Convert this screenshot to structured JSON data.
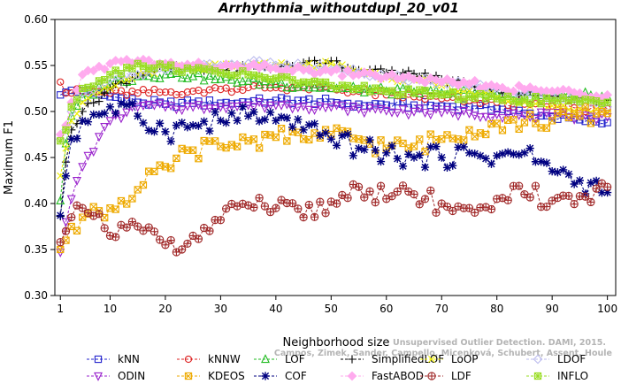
{
  "chart_data": {
    "type": "line",
    "title": "Arrhythmia_withoutdupl_20_v01",
    "xlabel": "Neighborhood size",
    "ylabel": "Maximum F1",
    "xlim": [
      1,
      100
    ],
    "ylim": [
      0.3,
      0.6
    ],
    "x_ticks": [
      1,
      10,
      20,
      30,
      40,
      50,
      60,
      70,
      80,
      90,
      100
    ],
    "y_ticks": [
      "0.30",
      "0.35",
      "0.40",
      "0.45",
      "0.50",
      "0.55",
      "0.60"
    ],
    "grid": false,
    "legend_position": "bottom",
    "credit": "Campos, Zimek, Sander, Campello, Micenková, Schubert, Assent, Houle",
    "credit_partial": "Unsupervised Outlier Detection. DAMI, 2015.",
    "x_knots": [
      1,
      2,
      3,
      5,
      10,
      15,
      20,
      25,
      30,
      35,
      40,
      45,
      50,
      55,
      60,
      65,
      70,
      75,
      80,
      85,
      90,
      95,
      100
    ],
    "series": [
      {
        "name": "kNN",
        "color": "#2222cc",
        "marker": "square",
        "values": [
          0.518,
          0.521,
          0.523,
          0.523,
          0.516,
          0.51,
          0.508,
          0.509,
          0.509,
          0.51,
          0.512,
          0.512,
          0.51,
          0.508,
          0.507,
          0.507,
          0.506,
          0.505,
          0.503,
          0.498,
          0.494,
          0.491,
          0.488
        ]
      },
      {
        "name": "kNNW",
        "color": "#dd2222",
        "marker": "circle",
        "values": [
          0.532,
          0.52,
          0.52,
          0.522,
          0.52,
          0.52,
          0.521,
          0.522,
          0.524,
          0.526,
          0.526,
          0.526,
          0.525,
          0.522,
          0.518,
          0.516,
          0.514,
          0.512,
          0.51,
          0.508,
          0.506,
          0.504,
          0.503
        ]
      },
      {
        "name": "LOF",
        "color": "#22bb22",
        "marker": "triangle",
        "values": [
          0.403,
          0.465,
          0.495,
          0.515,
          0.53,
          0.538,
          0.54,
          0.538,
          0.535,
          0.533,
          0.53,
          0.528,
          0.525,
          0.524,
          0.522,
          0.521,
          0.52,
          0.52,
          0.519,
          0.518,
          0.518,
          0.517,
          0.516
        ]
      },
      {
        "name": "SimplifiedLOF",
        "color": "#000000",
        "marker": "plus",
        "values": [
          0.386,
          0.445,
          0.48,
          0.5,
          0.525,
          0.54,
          0.548,
          0.545,
          0.545,
          0.548,
          0.548,
          0.553,
          0.555,
          0.545,
          0.542,
          0.541,
          0.535,
          0.53,
          0.525,
          0.52,
          0.517,
          0.515,
          0.512
        ]
      },
      {
        "name": "LoOP",
        "color": "#eeee00",
        "marker": "x",
        "values": [
          0.43,
          0.46,
          0.49,
          0.51,
          0.525,
          0.54,
          0.548,
          0.547,
          0.548,
          0.549,
          0.55,
          0.55,
          0.552,
          0.544,
          0.538,
          0.534,
          0.528,
          0.522,
          0.515,
          0.51,
          0.506,
          0.503,
          0.5
        ]
      },
      {
        "name": "LDOF",
        "color": "#bbbbee",
        "marker": "diamond",
        "values": [
          0.47,
          0.48,
          0.5,
          0.52,
          0.535,
          0.54,
          0.545,
          0.548,
          0.55,
          0.552,
          0.55,
          0.548,
          0.545,
          0.542,
          0.538,
          0.535,
          0.532,
          0.528,
          0.525,
          0.52,
          0.515,
          0.51,
          0.505
        ]
      },
      {
        "name": "ODIN",
        "color": "#9922cc",
        "marker": "triangle-down",
        "values": [
          0.347,
          0.38,
          0.405,
          0.44,
          0.49,
          0.505,
          0.505,
          0.505,
          0.505,
          0.507,
          0.507,
          0.506,
          0.505,
          0.503,
          0.501,
          0.5,
          0.499,
          0.498,
          0.497,
          0.496,
          0.495,
          0.495,
          0.494
        ]
      },
      {
        "name": "KDEOS",
        "color": "#eeaa00",
        "marker": "square-x",
        "values": [
          0.35,
          0.36,
          0.375,
          0.385,
          0.395,
          0.415,
          0.44,
          0.458,
          0.462,
          0.468,
          0.472,
          0.47,
          0.475,
          0.47,
          0.46,
          0.462,
          0.47,
          0.48,
          0.487,
          0.488,
          0.49,
          0.495,
          0.498
        ]
      },
      {
        "name": "COF",
        "color": "#000080",
        "marker": "star",
        "values": [
          0.387,
          0.43,
          0.47,
          0.49,
          0.505,
          0.495,
          0.478,
          0.485,
          0.49,
          0.495,
          0.49,
          0.48,
          0.47,
          0.46,
          0.455,
          0.45,
          0.45,
          0.455,
          0.452,
          0.455,
          0.435,
          0.425,
          0.412
        ]
      },
      {
        "name": "FastABOD",
        "color": "#ffaaee",
        "marker": "diamond-fill",
        "values": [
          0.475,
          0.485,
          0.51,
          0.54,
          0.552,
          0.555,
          0.552,
          0.55,
          0.548,
          0.548,
          0.547,
          0.545,
          0.543,
          0.54,
          0.538,
          0.535,
          0.532,
          0.53,
          0.527,
          0.524,
          0.522,
          0.52,
          0.518
        ]
      },
      {
        "name": "LDF",
        "color": "#a02828",
        "marker": "circle-plus",
        "values": [
          0.358,
          0.37,
          0.385,
          0.395,
          0.365,
          0.375,
          0.355,
          0.365,
          0.382,
          0.398,
          0.395,
          0.385,
          0.402,
          0.418,
          0.405,
          0.41,
          0.4,
          0.395,
          0.405,
          0.41,
          0.403,
          0.408,
          0.418
        ]
      },
      {
        "name": "INFLO",
        "color": "#99dd22",
        "marker": "square-star",
        "values": [
          0.468,
          0.48,
          0.505,
          0.525,
          0.54,
          0.552,
          0.548,
          0.545,
          0.542,
          0.54,
          0.536,
          0.532,
          0.528,
          0.525,
          0.522,
          0.52,
          0.518,
          0.516,
          0.514,
          0.513,
          0.512,
          0.511,
          0.51
        ]
      }
    ]
  }
}
